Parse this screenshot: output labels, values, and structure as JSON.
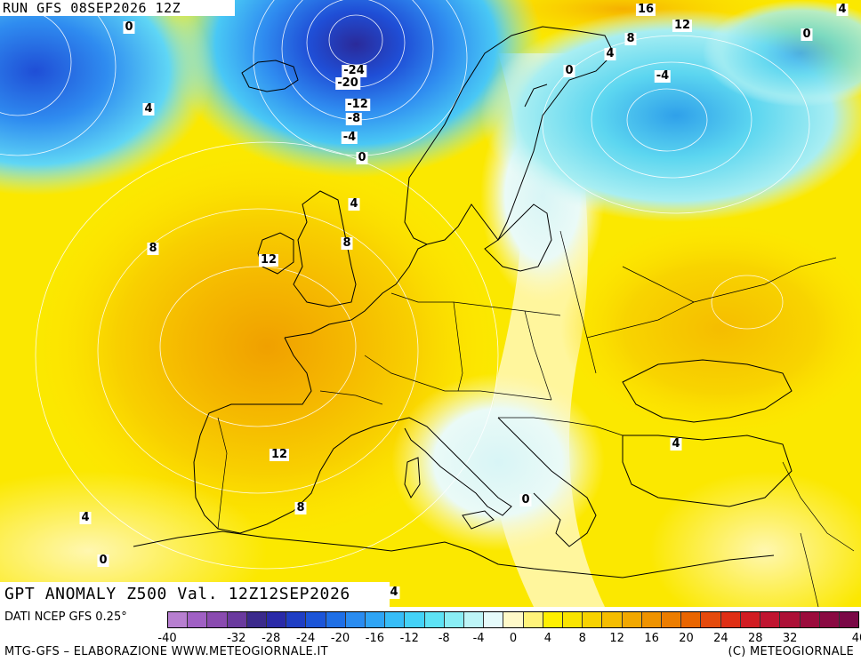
{
  "run_title": "RUN GFS 08SEP2026 12Z",
  "map_title": "GPT ANOMALY Z500 Val. 12Z12SEP2026",
  "source_text": "DATI NCEP GFS 0.25°",
  "footer_left": "MTG-GFS – ELABORAZIONE WWW.METEOGIORNALE.IT",
  "footer_right": "(C) METEOGIORNALE",
  "contour_labels": [
    "0",
    "16",
    "12",
    "4",
    "0",
    "8",
    "4",
    "0",
    "-4",
    "-24",
    "-20",
    "-12",
    "-8",
    "-4",
    "0",
    "4",
    "4",
    "8",
    "8",
    "12",
    "12",
    "8",
    "4",
    "0",
    "0",
    "4",
    "4"
  ],
  "legend": {
    "unit_steps": 2,
    "tick_labels": [
      "-40",
      "-32",
      "-28",
      "-24",
      "-20",
      "-16",
      "-12",
      "-8",
      "-4",
      "0",
      "4",
      "8",
      "12",
      "16",
      "20",
      "24",
      "28",
      "32",
      "40"
    ],
    "colors": [
      "#b77fd0",
      "#a060c4",
      "#8a4bb0",
      "#6a3a9e",
      "#3b2a8c",
      "#2a2aa8",
      "#1f3ec4",
      "#1c55d8",
      "#1f6fe6",
      "#2a8cf0",
      "#2fa5f5",
      "#37bdf7",
      "#44d2f7",
      "#5ee3f5",
      "#8aeef5",
      "#bdf5f7",
      "#e6fbfb",
      "#fff9c8",
      "#fff37a",
      "#fff000",
      "#f9e400",
      "#f7d200",
      "#f5bd00",
      "#f2a800",
      "#ef9300",
      "#ec7d00",
      "#e96500",
      "#e54a0c",
      "#df2f15",
      "#d11c22",
      "#c01530",
      "#ad1036",
      "#9b0c3c",
      "#8a0a42",
      "#7a0846"
    ]
  }
}
